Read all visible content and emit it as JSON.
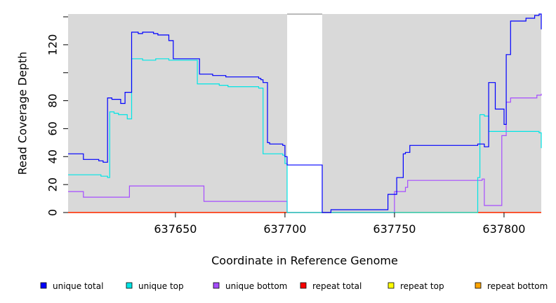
{
  "chart_data": {
    "type": "line",
    "xlabel": "Coordinate in Reference Genome",
    "ylabel": "Read Coverage Depth",
    "xlim": [
      637601,
      637817
    ],
    "ylim": [
      0,
      142
    ],
    "x_ticks": [
      637650,
      637700,
      637750,
      637800
    ],
    "y_ticks": [
      0,
      20,
      40,
      60,
      80,
      120
    ],
    "y_minor_ticks": [
      100,
      140
    ],
    "unplotted_region": [
      637701,
      637717
    ],
    "background": "#d9d9d9",
    "series": [
      {
        "name": "unique total",
        "color": "#0000ff",
        "x": [
          637601,
          637608,
          637615,
          637617,
          637619,
          637621,
          637625,
          637627,
          637630,
          637633,
          637635,
          637639,
          637640,
          637642,
          637647,
          637649,
          637661,
          637667,
          637673,
          637688,
          637689,
          637690,
          637692,
          637693,
          637698,
          637699,
          637700,
          637701,
          637717,
          637721,
          637747,
          637751,
          637754,
          637755,
          637757,
          637788,
          637789,
          637791,
          637793,
          637796,
          637800,
          637801,
          637803,
          637810,
          637814,
          637816,
          637817
        ],
        "y": [
          42,
          38,
          37,
          36,
          82,
          81,
          78,
          86,
          129,
          128,
          129,
          129,
          128,
          127,
          123,
          110,
          99,
          98,
          97,
          96,
          95,
          93,
          50,
          49,
          49,
          48,
          40,
          34,
          0,
          2,
          13,
          25,
          42,
          43,
          48,
          49,
          49,
          47,
          93,
          74,
          63,
          113,
          137,
          139,
          141,
          142,
          131
        ]
      },
      {
        "name": "unique top",
        "color": "#00e5e5",
        "x": [
          637601,
          637616,
          637619,
          637620,
          637622,
          637624,
          637628,
          637630,
          637635,
          637641,
          637647,
          637660,
          637670,
          637674,
          637688,
          637690,
          637699,
          637700,
          637701,
          637747,
          637788,
          637789,
          637791,
          637793,
          637800,
          637801,
          637816,
          637817
        ],
        "y": [
          27,
          26,
          25,
          72,
          71,
          70,
          67,
          110,
          109,
          110,
          109,
          92,
          91,
          90,
          89,
          42,
          41,
          35,
          0,
          0,
          25,
          70,
          69,
          58,
          58,
          58,
          57,
          46
        ]
      },
      {
        "name": "unique bottom",
        "color": "#a64dff",
        "x": [
          637601,
          637608,
          637627,
          637629,
          637661,
          637663,
          637700,
          637701,
          637749,
          637750,
          637755,
          637756,
          637790,
          637791,
          637798,
          637799,
          637801,
          637803,
          637815,
          637817
        ],
        "y": [
          15,
          11,
          11,
          19,
          19,
          8,
          8,
          0,
          0,
          15,
          18,
          23,
          24,
          5,
          5,
          55,
          79,
          82,
          84,
          85
        ]
      },
      {
        "name": "repeat total",
        "color": "#ff0000",
        "x": [
          637601,
          637817
        ],
        "y": [
          0,
          0
        ]
      },
      {
        "name": "repeat top",
        "color": "#ffff00",
        "x": [
          637601,
          637817
        ],
        "y": [
          0,
          0
        ]
      },
      {
        "name": "repeat bottom",
        "color": "#ffa500",
        "x": [
          637601,
          637817
        ],
        "y": [
          0,
          0
        ]
      }
    ]
  }
}
